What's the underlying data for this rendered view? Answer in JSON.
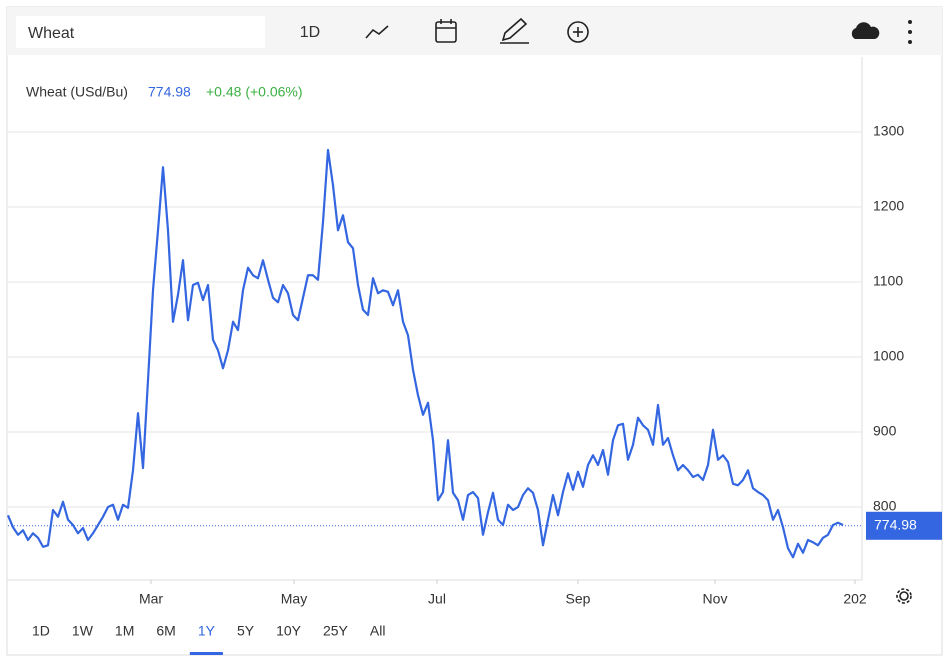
{
  "toolbar": {
    "search": "Wheat",
    "interval": "1D"
  },
  "chart_data": {
    "type": "line",
    "title": "Wheat (USd/Bu)",
    "price": 774.98,
    "change": "+0.48 (+0.06%)",
    "series": [
      {
        "color": "#3366e0",
        "values": [
          789,
          773,
          763,
          769,
          756,
          765,
          759,
          747,
          749,
          796,
          787,
          807,
          783,
          776,
          765,
          772,
          756,
          765,
          776,
          787,
          800,
          803,
          783,
          803,
          799,
          849,
          925,
          852,
          969,
          1089,
          1169,
          1253,
          1169,
          1047,
          1083,
          1129,
          1049,
          1096,
          1099,
          1076,
          1096,
          1023,
          1009,
          985,
          1009,
          1047,
          1036,
          1089,
          1119,
          1109,
          1105,
          1129,
          1103,
          1079,
          1073,
          1096,
          1085,
          1056,
          1049,
          1079,
          1109,
          1109,
          1103,
          1180,
          1276,
          1229,
          1169,
          1189,
          1153,
          1145,
          1096,
          1063,
          1056,
          1105,
          1085,
          1089,
          1087,
          1069,
          1089,
          1047,
          1029,
          983,
          949,
          923,
          939,
          889,
          809,
          820,
          889,
          819,
          809,
          783,
          816,
          820,
          812,
          763,
          793,
          819,
          783,
          776,
          803,
          796,
          800,
          816,
          825,
          819,
          796,
          749,
          783,
          816,
          789,
          820,
          845,
          823,
          847,
          827,
          856,
          869,
          856,
          876,
          843,
          889,
          909,
          911,
          863,
          883,
          919,
          909,
          903,
          883,
          936,
          883,
          892,
          869,
          849,
          856,
          849,
          840,
          843,
          836,
          856,
          903,
          863,
          869,
          860,
          831,
          829,
          836,
          849,
          825,
          820,
          816,
          809,
          783,
          796,
          773,
          745,
          733,
          751,
          739,
          756,
          753,
          749,
          759,
          763,
          776,
          779,
          776
        ]
      }
    ],
    "xlim": [
      0,
      170.8
    ],
    "xticks": [
      {
        "value": 28.6,
        "label": "Mar"
      },
      {
        "value": 57.2,
        "label": "May"
      },
      {
        "value": 85.8,
        "label": "Jul"
      },
      {
        "value": 114,
        "label": "Sep"
      },
      {
        "value": 141.4,
        "label": "Nov"
      },
      {
        "value": 169.4,
        "label": "202"
      }
    ],
    "ylim": [
      702.7,
      1400
    ],
    "yticks": [
      800,
      900,
      1000,
      1100,
      1200,
      1300
    ],
    "grid": true
  },
  "ranges": {
    "items": [
      "1D",
      "1W",
      "1M",
      "6M",
      "1Y",
      "5Y",
      "10Y",
      "25Y",
      "All"
    ],
    "selected": 4
  }
}
